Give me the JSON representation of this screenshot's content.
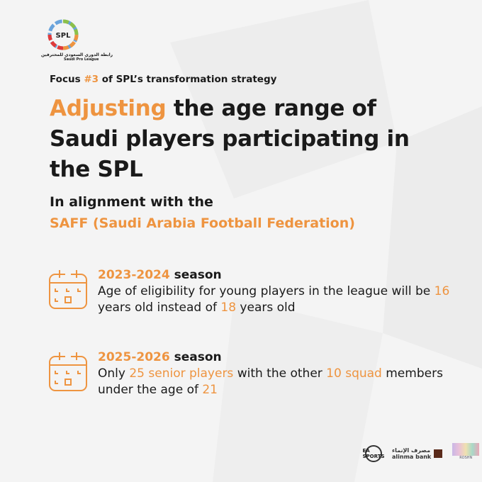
{
  "logo": {
    "abbr": "SPL",
    "arabic": "رابطة الدوري السعودي للمحترفين",
    "english": "Saudi Pro League"
  },
  "focus": {
    "prefix": "Focus ",
    "number": "#3",
    "suffix": " of SPL’s transformation strategy"
  },
  "title": {
    "highlight": "Adjusting",
    "rest": " the age range of Saudi players participating in the SPL"
  },
  "subtitle": {
    "line1": "In alignment with the",
    "line2": "SAFF (Saudi Arabia Football Federation)"
  },
  "items": [
    {
      "icon": "calendar-icon",
      "season_years": "2023-2024",
      "season_word": " season",
      "parts": [
        "Age of eligibility for young players in the league will be ",
        "16",
        " years old instead of ",
        "18",
        " years old"
      ]
    },
    {
      "icon": "calendar-icon",
      "season_years": "2025-2026",
      "season_word": " season",
      "parts": [
        "Only ",
        "25 senior players",
        " with the other ",
        "10 squad",
        " members under the age of ",
        "21"
      ]
    }
  ],
  "sponsors": {
    "ea": "EA SPORTS",
    "bank_ar": "مصرف الإنماء",
    "bank": "alinma bank",
    "roshn": "ROSHN"
  },
  "colors": {
    "accent": "#ee9440",
    "background": "#f4f4f4",
    "text": "#1a1a1a"
  }
}
